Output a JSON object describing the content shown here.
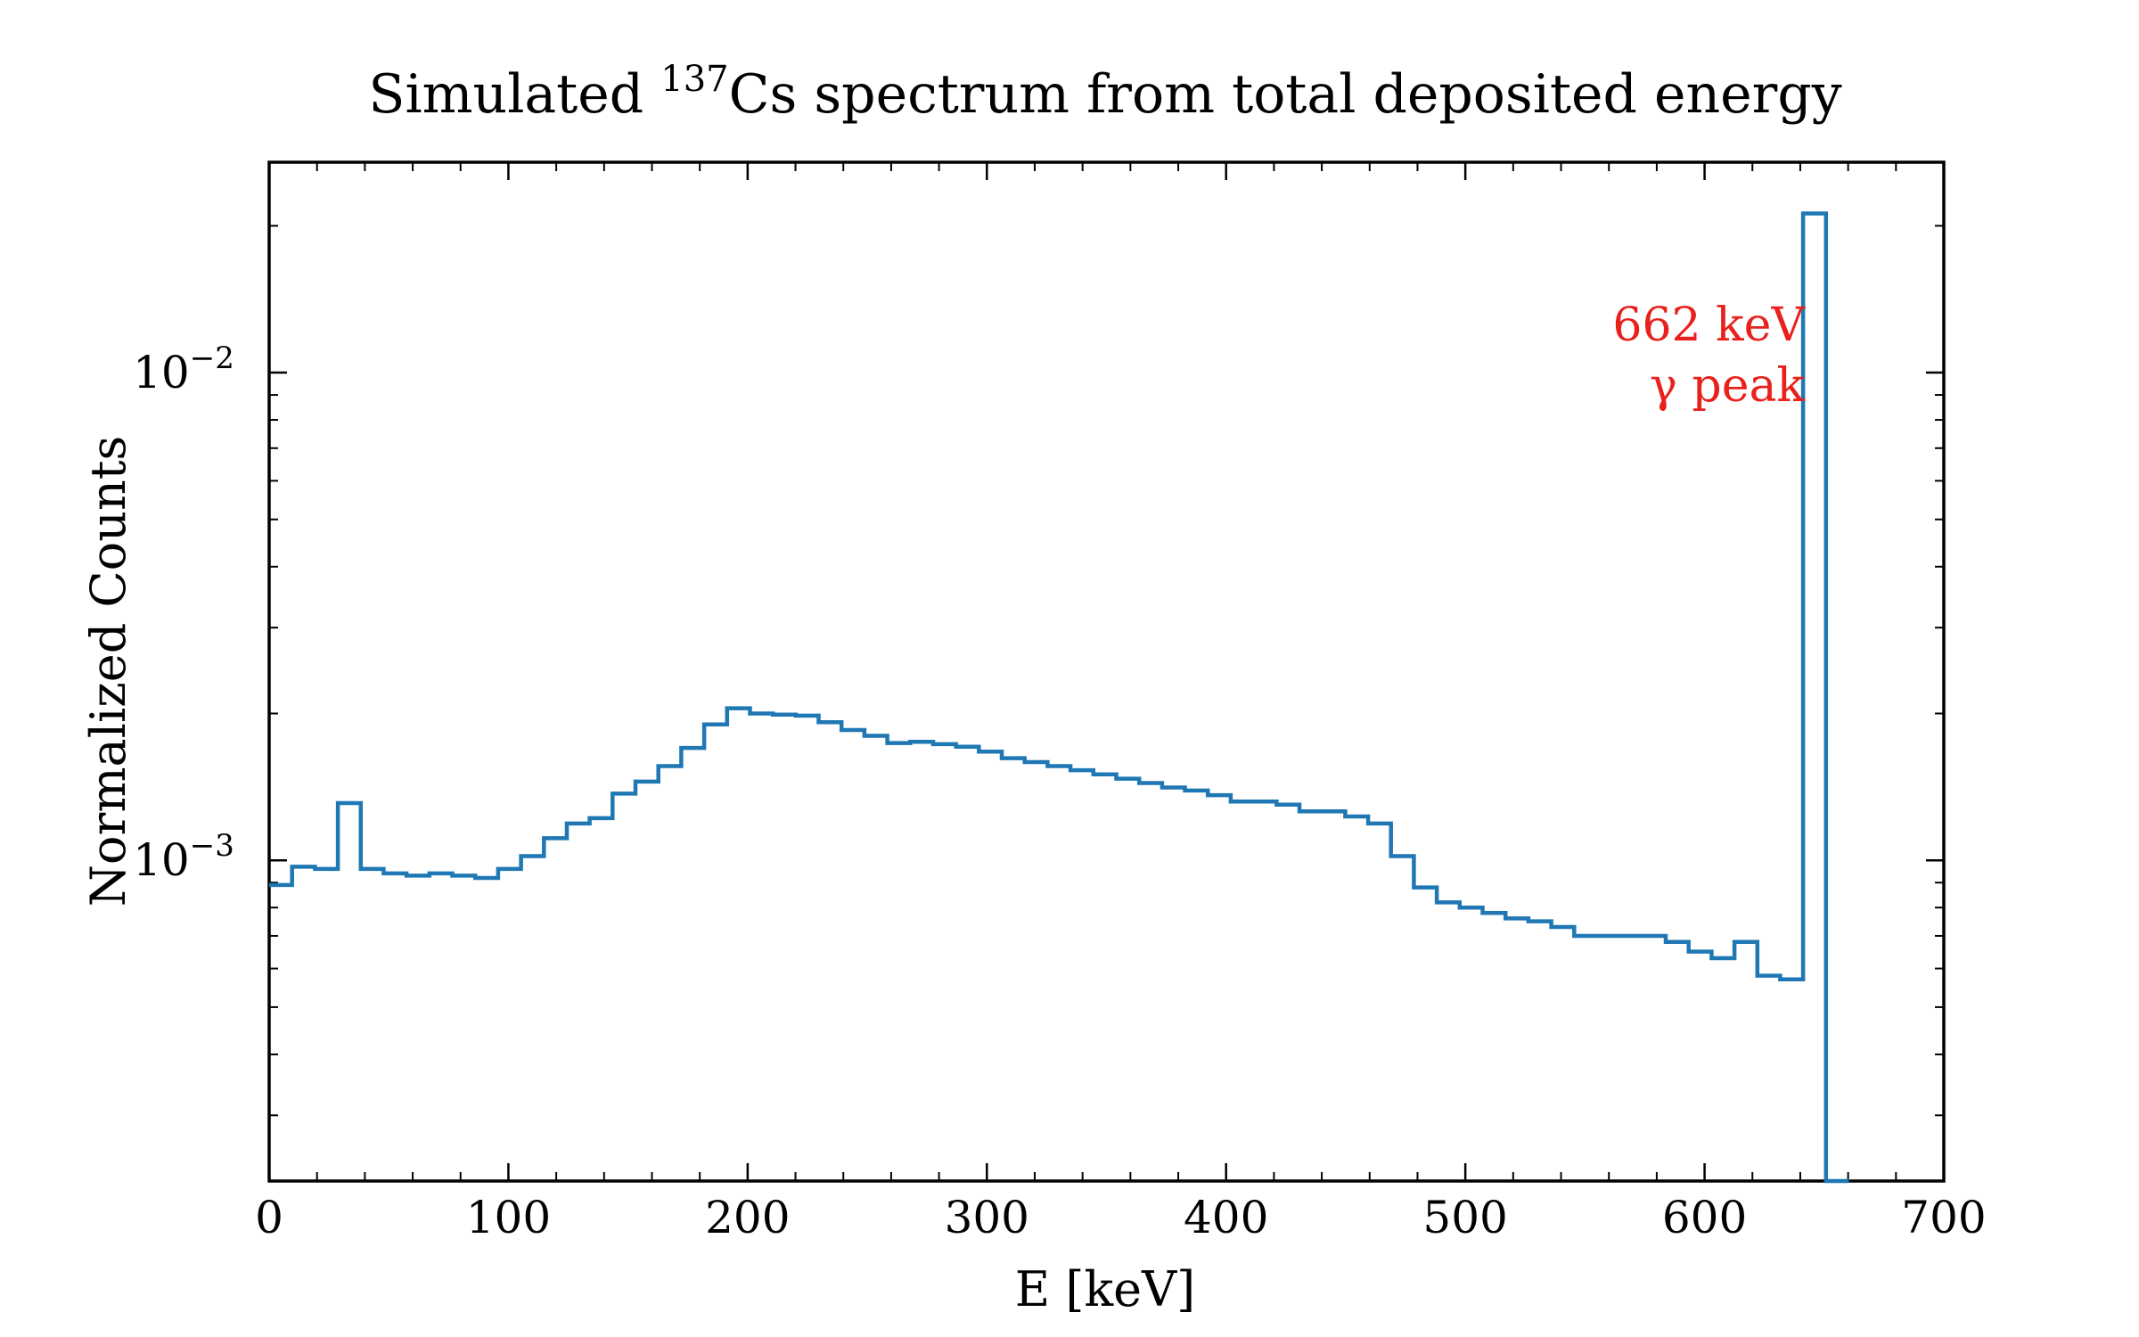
{
  "chart_data": {
    "type": "histogram",
    "title_prefix": "Simulated ",
    "title_isotope_mass": "137",
    "title_isotope_symbol": "Cs",
    "title_suffix": " spectrum from total deposited energy",
    "xlabel": "E [keV]",
    "ylabel": "Normalized Counts",
    "xlim": [
      0,
      700
    ],
    "ylim": [
      0.00022,
      0.027
    ],
    "yscale": "log",
    "x_ticks": [
      0,
      100,
      200,
      300,
      400,
      500,
      600,
      700
    ],
    "x_tick_labels": [
      "0",
      "100",
      "200",
      "300",
      "400",
      "500",
      "600",
      "700"
    ],
    "y_major_ticks": [
      0.001,
      0.01
    ],
    "y_tick_base": "10",
    "y_tick_exponents": [
      "−3",
      "−2"
    ],
    "line_color": "#1f77b4",
    "annotation_color": "#e8211c",
    "annotation_lines": [
      "662 keV",
      "γ peak"
    ],
    "bin_edges": [
      0,
      9.57,
      19.14,
      28.71,
      38.28,
      47.85,
      57.42,
      66.99,
      76.56,
      86.13,
      95.7,
      105.27,
      114.84,
      124.41,
      133.98,
      143.55,
      153.12,
      162.69,
      172.26,
      181.83,
      191.4,
      200.97,
      210.54,
      220.11,
      229.68,
      239.25,
      248.82,
      258.39,
      267.96,
      277.53,
      287.1,
      296.67,
      306.24,
      315.81,
      325.38,
      334.95,
      344.52,
      354.09,
      363.66,
      373.23,
      382.8,
      392.37,
      401.94,
      411.51,
      421.08,
      430.65,
      440.22,
      449.79,
      459.36,
      468.93,
      478.5,
      488.07,
      497.64,
      507.21,
      516.78,
      526.35,
      535.92,
      545.49,
      555.06,
      564.63,
      574.2,
      583.77,
      593.34,
      602.91,
      612.48,
      622.05,
      631.62,
      641.19,
      650.76,
      660.33
    ],
    "counts": [
      0.00089,
      0.00097,
      0.00096,
      0.00131,
      0.00096,
      0.00094,
      0.00093,
      0.00094,
      0.00093,
      0.00092,
      0.00096,
      0.00102,
      0.00111,
      0.00119,
      0.00122,
      0.00137,
      0.00145,
      0.00156,
      0.0017,
      0.0019,
      0.00205,
      0.002,
      0.00199,
      0.00198,
      0.00192,
      0.00185,
      0.0018,
      0.00174,
      0.00175,
      0.00173,
      0.00171,
      0.00167,
      0.00162,
      0.00159,
      0.00156,
      0.00153,
      0.0015,
      0.00147,
      0.00144,
      0.00141,
      0.00139,
      0.00136,
      0.00132,
      0.00132,
      0.0013,
      0.00126,
      0.00126,
      0.00123,
      0.00119,
      0.00102,
      0.00088,
      0.00082,
      0.0008,
      0.00078,
      0.00076,
      0.00075,
      0.00073,
      0.0007,
      0.0007,
      0.0007,
      0.0007,
      0.00068,
      0.00065,
      0.00063,
      0.00068,
      0.00058,
      0.00057,
      0.0212,
      0.00022
    ]
  }
}
